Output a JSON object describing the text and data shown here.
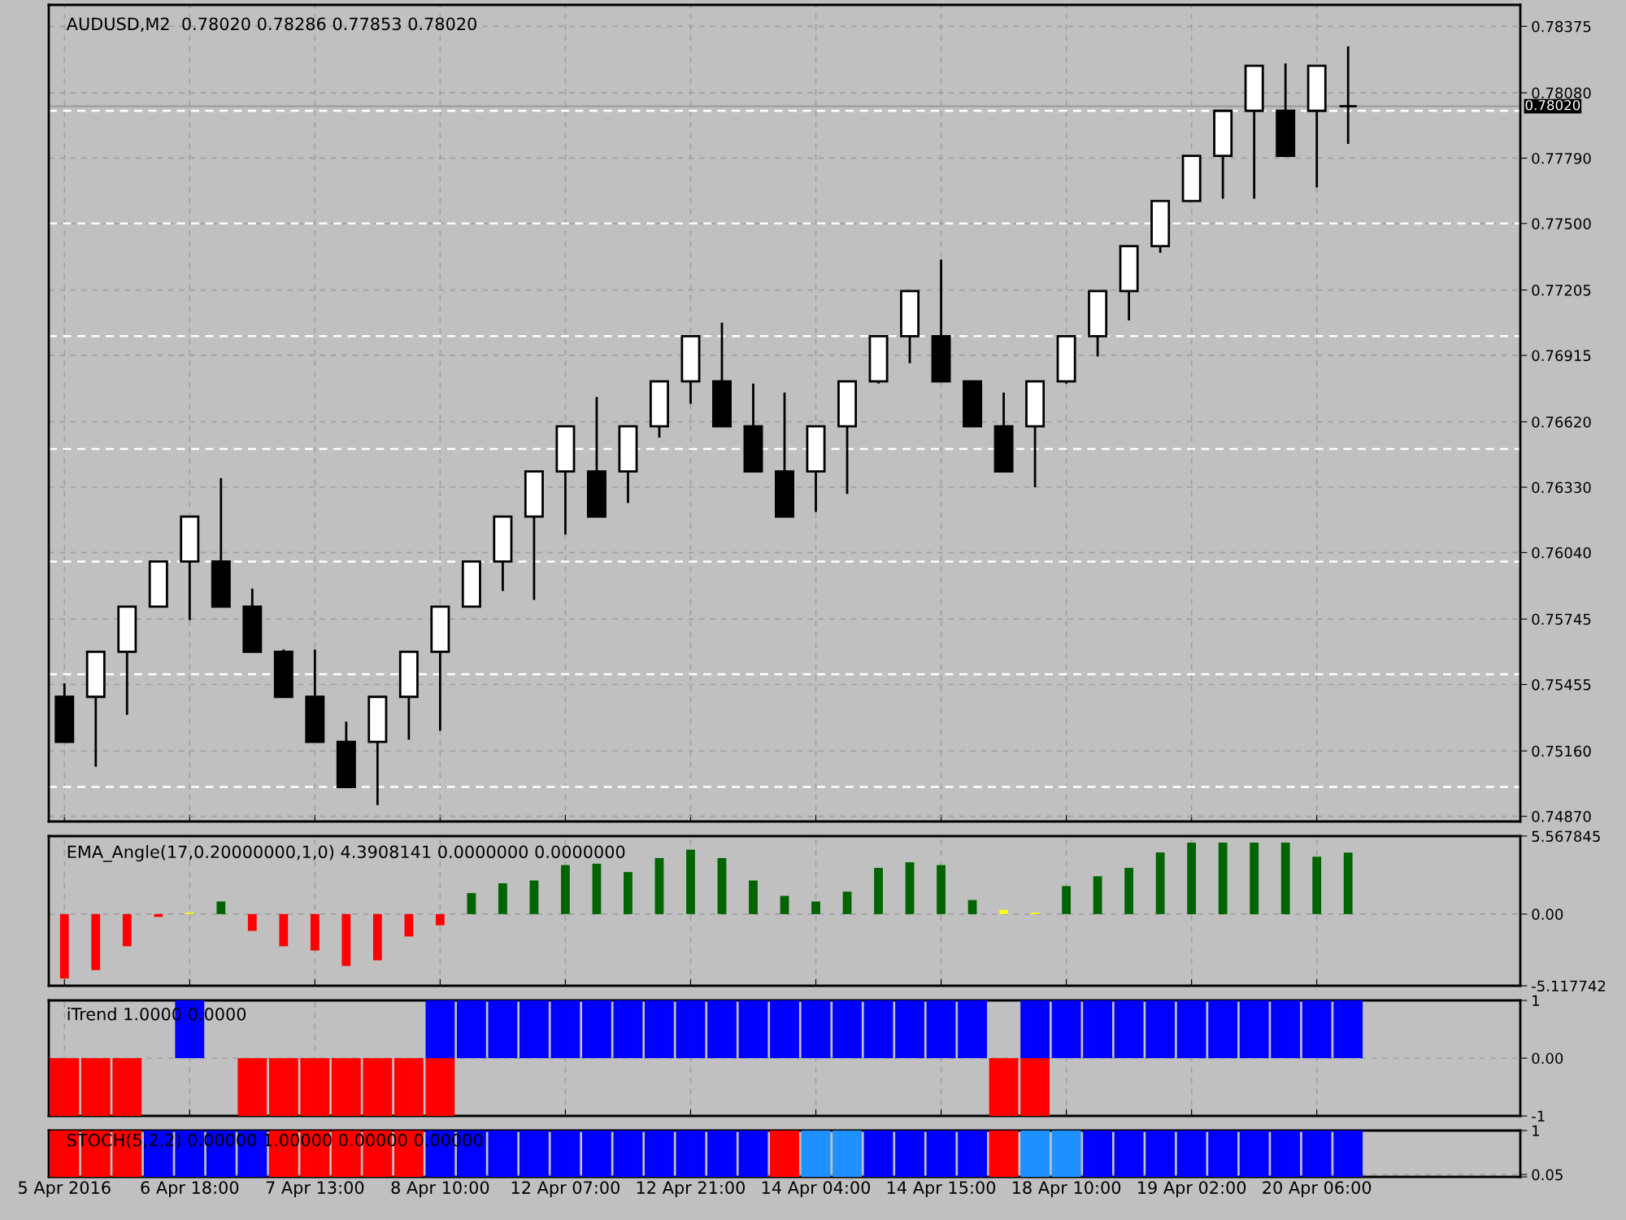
{
  "chart_data": [
    {
      "type": "candlestick",
      "title": "AUDUSD,M2  0.78020 0.78286 0.77853 0.78020",
      "categories": [
        null,
        null,
        null,
        null,
        null,
        null,
        null,
        null,
        null,
        null,
        null,
        null,
        null,
        null,
        null,
        null,
        null,
        null,
        null,
        null,
        null,
        null,
        null,
        null,
        null,
        null,
        null,
        null,
        null,
        null,
        null,
        null,
        null,
        null,
        null,
        null,
        null,
        null,
        null,
        null,
        null,
        null,
        null,
        null,
        null,
        null,
        null
      ],
      "ohlc": [
        [
          0.754,
          0.7546,
          0.752,
          0.752
        ],
        [
          0.754,
          0.756,
          0.7509,
          0.756
        ],
        [
          0.756,
          0.758,
          0.7532,
          0.758
        ],
        [
          0.758,
          0.76,
          0.758,
          0.76
        ],
        [
          0.76,
          0.762,
          0.7574,
          0.762
        ],
        [
          0.76,
          0.7637,
          0.758,
          0.758
        ],
        [
          0.758,
          0.7588,
          0.756,
          0.756
        ],
        [
          0.756,
          0.7561,
          0.754,
          0.754
        ],
        [
          0.754,
          0.7561,
          0.752,
          0.752
        ],
        [
          0.752,
          0.7529,
          0.75,
          0.75
        ],
        [
          0.752,
          0.754,
          0.7492,
          0.754
        ],
        [
          0.754,
          0.756,
          0.7521,
          0.756
        ],
        [
          0.756,
          0.758,
          0.7525,
          0.758
        ],
        [
          0.758,
          0.76,
          0.758,
          0.76
        ],
        [
          0.76,
          0.762,
          0.7587,
          0.762
        ],
        [
          0.762,
          0.764,
          0.7583,
          0.764
        ],
        [
          0.764,
          0.766,
          0.7612,
          0.766
        ],
        [
          0.764,
          0.7673,
          0.762,
          0.762
        ],
        [
          0.764,
          0.766,
          0.7626,
          0.766
        ],
        [
          0.766,
          0.768,
          0.7655,
          0.768
        ],
        [
          0.768,
          0.77,
          0.767,
          0.77
        ],
        [
          0.768,
          0.7706,
          0.766,
          0.766
        ],
        [
          0.766,
          0.7679,
          0.764,
          0.764
        ],
        [
          0.764,
          0.7675,
          0.762,
          0.762
        ],
        [
          0.764,
          0.766,
          0.7622,
          0.766
        ],
        [
          0.766,
          0.768,
          0.763,
          0.768
        ],
        [
          0.768,
          0.77,
          0.7679,
          0.77
        ],
        [
          0.77,
          0.772,
          0.7688,
          0.772
        ],
        [
          0.77,
          0.7734,
          0.768,
          0.768
        ],
        [
          0.768,
          0.768,
          0.766,
          0.766
        ],
        [
          0.766,
          0.7675,
          0.764,
          0.764
        ],
        [
          0.766,
          0.768,
          0.7633,
          0.768
        ],
        [
          0.768,
          0.77,
          0.7679,
          0.77
        ],
        [
          0.77,
          0.772,
          0.7691,
          0.772
        ],
        [
          0.772,
          0.774,
          0.7707,
          0.774
        ],
        [
          0.774,
          0.776,
          0.7737,
          0.776
        ],
        [
          0.776,
          0.778,
          0.776,
          0.778
        ],
        [
          0.778,
          0.78,
          0.7761,
          0.78
        ],
        [
          0.78,
          0.782,
          0.7761,
          0.782
        ],
        [
          0.78,
          0.7821,
          0.778,
          0.778
        ],
        [
          0.78,
          0.782,
          0.7766,
          0.782
        ],
        [
          0.7802,
          0.78286,
          0.77853,
          0.7802
        ],
        null,
        null,
        null,
        null,
        null
      ],
      "colors": [
        "#000000",
        "#ffffff",
        "#ffffff",
        "#ffffff",
        "#ffffff",
        "#000000",
        "#000000",
        "#000000",
        "#000000",
        "#000000",
        "#ffffff",
        "#ffffff",
        "#ffffff",
        "#ffffff",
        "#ffffff",
        "#ffffff",
        "#ffffff",
        "#000000",
        "#ffffff",
        "#ffffff",
        "#ffffff",
        "#000000",
        "#000000",
        "#000000",
        "#ffffff",
        "#ffffff",
        "#ffffff",
        "#ffffff",
        "#000000",
        "#000000",
        "#000000",
        "#ffffff",
        "#ffffff",
        "#ffffff",
        "#ffffff",
        "#ffffff",
        "#ffffff",
        "#ffffff",
        "#ffffff",
        "#000000",
        "#ffffff",
        "#000000",
        null,
        null,
        null,
        null,
        null
      ],
      "ylim": [
        0.74847,
        0.7847
      ],
      "yticks": [
        {
          "value": 0.78375,
          "label": "0.78375"
        },
        {
          "value": 0.7808,
          "label": "0.78080"
        },
        {
          "value": 0.7779,
          "label": "0.77790"
        },
        {
          "value": 0.775,
          "label": "0.77500"
        },
        {
          "value": 0.77205,
          "label": "0.77205"
        },
        {
          "value": 0.76915,
          "label": "0.76915"
        },
        {
          "value": 0.7662,
          "label": "0.76620"
        },
        {
          "value": 0.7633,
          "label": "0.76330"
        },
        {
          "value": 0.7604,
          "label": "0.76040"
        },
        {
          "value": 0.75745,
          "label": "0.75745"
        },
        {
          "value": 0.75455,
          "label": "0.75455"
        },
        {
          "value": 0.7516,
          "label": "0.75160"
        },
        {
          "value": 0.7487,
          "label": "0.74870"
        }
      ],
      "ref_lines": [
        {
          "axis": "y",
          "value": 0.75,
          "color": "#ffffff",
          "line_style": "dashed"
        },
        {
          "axis": "y",
          "value": 0.755,
          "color": "#ffffff",
          "line_style": "dashed"
        },
        {
          "axis": "y",
          "value": 0.76,
          "color": "#ffffff",
          "line_style": "dashed"
        },
        {
          "axis": "y",
          "value": 0.765,
          "color": "#ffffff",
          "line_style": "dashed"
        },
        {
          "axis": "y",
          "value": 0.77,
          "color": "#ffffff",
          "line_style": "dashed"
        },
        {
          "axis": "y",
          "value": 0.775,
          "color": "#ffffff",
          "line_style": "dashed"
        },
        {
          "axis": "y",
          "value": 0.78,
          "color": "#ffffff",
          "line_style": "dashed"
        },
        {
          "axis": "y",
          "value": 0.7802,
          "label": "0.78020",
          "color": "#a0a0a0",
          "line_style": "solid"
        }
      ],
      "grid": true,
      "tick_labels": "y"
    },
    {
      "type": "bar",
      "title": "EMA_Angle(17,0.20000000,1,0) 4.3908141 0.0000000 0.0000000",
      "categories": [
        null,
        null,
        null,
        null,
        null,
        null,
        null,
        null,
        null,
        null,
        null,
        null,
        null,
        null,
        null,
        null,
        null,
        null,
        null,
        null,
        null,
        null,
        null,
        null,
        null,
        null,
        null,
        null,
        null,
        null,
        null,
        null,
        null,
        null,
        null,
        null,
        null,
        null,
        null,
        null,
        null,
        null,
        null,
        null,
        null,
        null,
        null
      ],
      "values": [
        -4.6,
        -4.0,
        -2.3,
        -0.2,
        0.1,
        0.9,
        -1.2,
        -2.3,
        -2.6,
        -3.7,
        -3.3,
        -1.6,
        -0.8,
        1.5,
        2.2,
        2.4,
        3.5,
        3.6,
        3.0,
        4.0,
        4.6,
        4.0,
        2.4,
        1.3,
        0.9,
        1.6,
        3.3,
        3.7,
        3.5,
        1.0,
        0.3,
        0.1,
        2.0,
        2.7,
        3.3,
        4.4,
        5.1,
        5.1,
        5.1,
        5.1,
        4.1,
        4.39,
        null,
        null,
        null,
        null,
        null
      ],
      "colors": [
        "#ff0000",
        "#ff0000",
        "#ff0000",
        "#ff0000",
        "#ffff00",
        "#006400",
        "#ff0000",
        "#ff0000",
        "#ff0000",
        "#ff0000",
        "#ff0000",
        "#ff0000",
        "#ff0000",
        "#006400",
        "#006400",
        "#006400",
        "#006400",
        "#006400",
        "#006400",
        "#006400",
        "#006400",
        "#006400",
        "#006400",
        "#006400",
        "#006400",
        "#006400",
        "#006400",
        "#006400",
        "#006400",
        "#006400",
        "#ffff00",
        "#ffff00",
        "#006400",
        "#006400",
        "#006400",
        "#006400",
        "#006400",
        "#006400",
        "#006400",
        "#006400",
        "#006400",
        "#006400",
        null,
        null,
        null,
        null,
        null
      ],
      "ylim": [
        -5.117742,
        5.567845
      ],
      "yticks": [
        5.567845,
        {
          "value": 0,
          "label": "0.00"
        },
        -5.117742
      ],
      "grid": true,
      "tick_labels": "y"
    },
    {
      "type": "bar",
      "title": "iTrend 1.0000 0.0000",
      "categories": [
        null,
        null,
        null,
        null,
        null,
        null,
        null,
        null,
        null,
        null,
        null,
        null,
        null,
        null,
        null,
        null,
        null,
        null,
        null,
        null,
        null,
        null,
        null,
        null,
        null,
        null,
        null,
        null,
        null,
        null,
        null,
        null,
        null,
        null,
        null,
        null,
        null,
        null,
        null,
        null,
        null,
        null,
        null,
        null,
        null,
        null,
        null
      ],
      "series": [
        {
          "color": "#0000ff",
          "values": [
            0,
            0,
            0,
            0,
            1,
            0,
            0,
            0,
            0,
            0,
            0,
            0,
            1,
            1,
            1,
            1,
            1,
            1,
            1,
            1,
            1,
            1,
            1,
            1,
            1,
            1,
            1,
            1,
            1,
            1,
            0,
            1,
            1,
            1,
            1,
            1,
            1,
            1,
            1,
            1,
            1,
            1,
            null,
            null,
            null,
            null,
            null
          ]
        },
        {
          "color": "#ff0000",
          "values": [
            -1,
            -1,
            -1,
            0,
            0,
            0,
            -1,
            -1,
            -1,
            -1,
            -1,
            -1,
            -1,
            0,
            0,
            0,
            0,
            0,
            0,
            0,
            0,
            0,
            0,
            0,
            0,
            0,
            0,
            0,
            0,
            0,
            -1,
            -1,
            0,
            0,
            0,
            0,
            0,
            0,
            0,
            0,
            0,
            0,
            null,
            null,
            null,
            null,
            null
          ]
        }
      ],
      "ylim": [
        -1,
        1
      ],
      "yticks": [
        1,
        {
          "value": 0,
          "label": "0.00"
        },
        -1
      ],
      "grid": true,
      "tick_labels": "y"
    },
    {
      "type": "bar",
      "title": "STOCH(5,2,2) 0.00000 1.00000 0.00000 0.00000",
      "categories": [
        "5 Apr 2016",
        null,
        null,
        null,
        "6 Apr 18:00",
        null,
        null,
        null,
        "7 Apr 13:00",
        null,
        null,
        null,
        "8 Apr 10:00",
        null,
        null,
        null,
        "12 Apr 07:00",
        null,
        null,
        null,
        "12 Apr 21:00",
        null,
        null,
        null,
        "14 Apr 04:00",
        null,
        null,
        null,
        "14 Apr 15:00",
        null,
        null,
        null,
        "18 Apr 10:00",
        null,
        null,
        null,
        "19 Apr 02:00",
        null,
        null,
        null,
        "20 Apr 06:00",
        null,
        null,
        null,
        null,
        null,
        null
      ],
      "series": [
        {
          "color": "#ff0000",
          "values": [
            1,
            1,
            1,
            0,
            0,
            0,
            0,
            1,
            1,
            1,
            1,
            1,
            0,
            0,
            0,
            0,
            0,
            0,
            0,
            0,
            0,
            0,
            0,
            1,
            0,
            0,
            0,
            0,
            0,
            0,
            1,
            0,
            0,
            0,
            0,
            0,
            0,
            0,
            0,
            0,
            0,
            0,
            null,
            null,
            null,
            null,
            null
          ]
        },
        {
          "color": "#0000ff",
          "values": [
            0,
            0,
            0,
            1,
            1,
            1,
            1,
            0,
            0,
            0,
            0,
            0,
            1,
            1,
            1,
            1,
            1,
            1,
            1,
            1,
            1,
            1,
            1,
            0,
            0,
            0,
            1,
            1,
            1,
            1,
            0,
            0,
            0,
            1,
            1,
            1,
            1,
            1,
            1,
            1,
            1,
            1,
            null,
            null,
            null,
            null,
            null
          ]
        },
        {
          "color": "#1e90ff",
          "values": [
            0,
            0,
            0,
            0,
            0,
            0,
            0,
            0,
            0,
            0,
            0,
            0,
            0,
            0,
            0,
            0,
            0,
            0,
            0,
            0,
            0,
            0,
            0,
            0,
            1,
            1,
            0,
            0,
            0,
            0,
            0,
            1,
            1,
            0,
            0,
            0,
            0,
            0,
            0,
            0,
            0,
            0,
            null,
            null,
            null,
            null,
            null
          ]
        }
      ],
      "ylim": [
        0,
        1
      ],
      "yticks": [
        1,
        0.05,
        {
          "value": 0,
          "label": null
        }
      ],
      "grid": true
    }
  ]
}
